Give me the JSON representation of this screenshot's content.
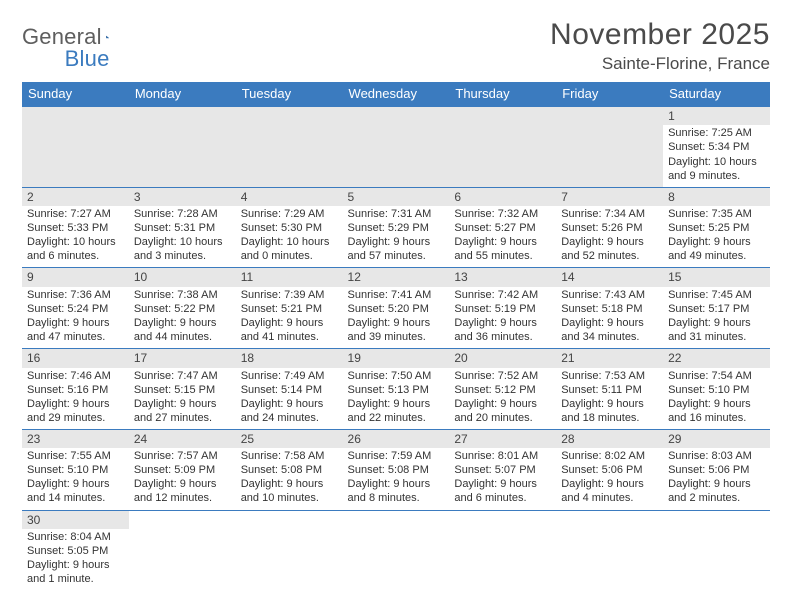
{
  "logo": {
    "word1": "General",
    "word2": "Blue"
  },
  "title": "November 2025",
  "subtitle": "Sainte-Florine, France",
  "headerColor": "#3b7bbf",
  "dayHeaders": [
    "Sunday",
    "Monday",
    "Tuesday",
    "Wednesday",
    "Thursday",
    "Friday",
    "Saturday"
  ],
  "weeks": [
    [
      null,
      null,
      null,
      null,
      null,
      null,
      {
        "n": "1",
        "sunrise": "Sunrise: 7:25 AM",
        "sunset": "Sunset: 5:34 PM",
        "d1": "Daylight: 10 hours",
        "d2": "and 9 minutes."
      }
    ],
    [
      {
        "n": "2",
        "sunrise": "Sunrise: 7:27 AM",
        "sunset": "Sunset: 5:33 PM",
        "d1": "Daylight: 10 hours",
        "d2": "and 6 minutes."
      },
      {
        "n": "3",
        "sunrise": "Sunrise: 7:28 AM",
        "sunset": "Sunset: 5:31 PM",
        "d1": "Daylight: 10 hours",
        "d2": "and 3 minutes."
      },
      {
        "n": "4",
        "sunrise": "Sunrise: 7:29 AM",
        "sunset": "Sunset: 5:30 PM",
        "d1": "Daylight: 10 hours",
        "d2": "and 0 minutes."
      },
      {
        "n": "5",
        "sunrise": "Sunrise: 7:31 AM",
        "sunset": "Sunset: 5:29 PM",
        "d1": "Daylight: 9 hours",
        "d2": "and 57 minutes."
      },
      {
        "n": "6",
        "sunrise": "Sunrise: 7:32 AM",
        "sunset": "Sunset: 5:27 PM",
        "d1": "Daylight: 9 hours",
        "d2": "and 55 minutes."
      },
      {
        "n": "7",
        "sunrise": "Sunrise: 7:34 AM",
        "sunset": "Sunset: 5:26 PM",
        "d1": "Daylight: 9 hours",
        "d2": "and 52 minutes."
      },
      {
        "n": "8",
        "sunrise": "Sunrise: 7:35 AM",
        "sunset": "Sunset: 5:25 PM",
        "d1": "Daylight: 9 hours",
        "d2": "and 49 minutes."
      }
    ],
    [
      {
        "n": "9",
        "sunrise": "Sunrise: 7:36 AM",
        "sunset": "Sunset: 5:24 PM",
        "d1": "Daylight: 9 hours",
        "d2": "and 47 minutes."
      },
      {
        "n": "10",
        "sunrise": "Sunrise: 7:38 AM",
        "sunset": "Sunset: 5:22 PM",
        "d1": "Daylight: 9 hours",
        "d2": "and 44 minutes."
      },
      {
        "n": "11",
        "sunrise": "Sunrise: 7:39 AM",
        "sunset": "Sunset: 5:21 PM",
        "d1": "Daylight: 9 hours",
        "d2": "and 41 minutes."
      },
      {
        "n": "12",
        "sunrise": "Sunrise: 7:41 AM",
        "sunset": "Sunset: 5:20 PM",
        "d1": "Daylight: 9 hours",
        "d2": "and 39 minutes."
      },
      {
        "n": "13",
        "sunrise": "Sunrise: 7:42 AM",
        "sunset": "Sunset: 5:19 PM",
        "d1": "Daylight: 9 hours",
        "d2": "and 36 minutes."
      },
      {
        "n": "14",
        "sunrise": "Sunrise: 7:43 AM",
        "sunset": "Sunset: 5:18 PM",
        "d1": "Daylight: 9 hours",
        "d2": "and 34 minutes."
      },
      {
        "n": "15",
        "sunrise": "Sunrise: 7:45 AM",
        "sunset": "Sunset: 5:17 PM",
        "d1": "Daylight: 9 hours",
        "d2": "and 31 minutes."
      }
    ],
    [
      {
        "n": "16",
        "sunrise": "Sunrise: 7:46 AM",
        "sunset": "Sunset: 5:16 PM",
        "d1": "Daylight: 9 hours",
        "d2": "and 29 minutes."
      },
      {
        "n": "17",
        "sunrise": "Sunrise: 7:47 AM",
        "sunset": "Sunset: 5:15 PM",
        "d1": "Daylight: 9 hours",
        "d2": "and 27 minutes."
      },
      {
        "n": "18",
        "sunrise": "Sunrise: 7:49 AM",
        "sunset": "Sunset: 5:14 PM",
        "d1": "Daylight: 9 hours",
        "d2": "and 24 minutes."
      },
      {
        "n": "19",
        "sunrise": "Sunrise: 7:50 AM",
        "sunset": "Sunset: 5:13 PM",
        "d1": "Daylight: 9 hours",
        "d2": "and 22 minutes."
      },
      {
        "n": "20",
        "sunrise": "Sunrise: 7:52 AM",
        "sunset": "Sunset: 5:12 PM",
        "d1": "Daylight: 9 hours",
        "d2": "and 20 minutes."
      },
      {
        "n": "21",
        "sunrise": "Sunrise: 7:53 AM",
        "sunset": "Sunset: 5:11 PM",
        "d1": "Daylight: 9 hours",
        "d2": "and 18 minutes."
      },
      {
        "n": "22",
        "sunrise": "Sunrise: 7:54 AM",
        "sunset": "Sunset: 5:10 PM",
        "d1": "Daylight: 9 hours",
        "d2": "and 16 minutes."
      }
    ],
    [
      {
        "n": "23",
        "sunrise": "Sunrise: 7:55 AM",
        "sunset": "Sunset: 5:10 PM",
        "d1": "Daylight: 9 hours",
        "d2": "and 14 minutes."
      },
      {
        "n": "24",
        "sunrise": "Sunrise: 7:57 AM",
        "sunset": "Sunset: 5:09 PM",
        "d1": "Daylight: 9 hours",
        "d2": "and 12 minutes."
      },
      {
        "n": "25",
        "sunrise": "Sunrise: 7:58 AM",
        "sunset": "Sunset: 5:08 PM",
        "d1": "Daylight: 9 hours",
        "d2": "and 10 minutes."
      },
      {
        "n": "26",
        "sunrise": "Sunrise: 7:59 AM",
        "sunset": "Sunset: 5:08 PM",
        "d1": "Daylight: 9 hours",
        "d2": "and 8 minutes."
      },
      {
        "n": "27",
        "sunrise": "Sunrise: 8:01 AM",
        "sunset": "Sunset: 5:07 PM",
        "d1": "Daylight: 9 hours",
        "d2": "and 6 minutes."
      },
      {
        "n": "28",
        "sunrise": "Sunrise: 8:02 AM",
        "sunset": "Sunset: 5:06 PM",
        "d1": "Daylight: 9 hours",
        "d2": "and 4 minutes."
      },
      {
        "n": "29",
        "sunrise": "Sunrise: 8:03 AM",
        "sunset": "Sunset: 5:06 PM",
        "d1": "Daylight: 9 hours",
        "d2": "and 2 minutes."
      }
    ],
    [
      {
        "n": "30",
        "sunrise": "Sunrise: 8:04 AM",
        "sunset": "Sunset: 5:05 PM",
        "d1": "Daylight: 9 hours",
        "d2": "and 1 minute."
      },
      null,
      null,
      null,
      null,
      null,
      null
    ]
  ]
}
